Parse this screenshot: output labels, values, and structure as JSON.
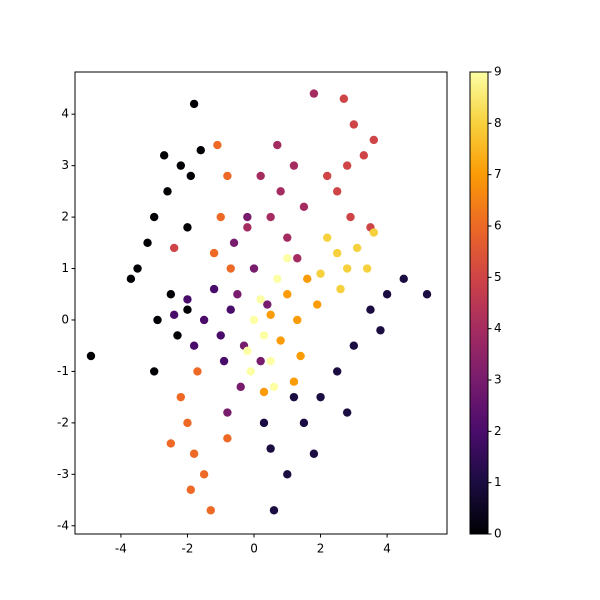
{
  "chart_data": {
    "type": "scatter",
    "colormap": "inferno",
    "x": [
      -2.2,
      -1.8,
      -2.6,
      -3.0,
      -2.0,
      -3.5,
      -2.5,
      -2.9,
      -1.9,
      -3.2,
      -2.3,
      -4.9,
      -3.7,
      -1.6,
      -2.7,
      -3.0,
      -2.0,
      0.5,
      1.0,
      1.5,
      2.0,
      2.5,
      3.0,
      3.5,
      4.0,
      4.5,
      5.2,
      0.3,
      1.2,
      2.8,
      0.6,
      3.8,
      1.8,
      -1.5,
      -1.0,
      -2.0,
      -1.2,
      -0.7,
      -1.8,
      -0.9,
      -2.4,
      -0.5,
      -0.3,
      0.0,
      -0.6,
      0.2,
      -0.4,
      0.4,
      -0.8,
      -0.2,
      0.8,
      1.2,
      0.5,
      1.5,
      0.2,
      1.0,
      0.7,
      1.8,
      1.3,
      -0.2,
      2.8,
      3.0,
      2.5,
      3.3,
      2.7,
      2.2,
      3.6,
      2.9,
      -2.4,
      3.5,
      -1.0,
      -0.8,
      -1.2,
      -0.7,
      -1.1,
      -2.0,
      -1.8,
      -2.2,
      -1.5,
      -1.3,
      -2.5,
      -0.8,
      -1.7,
      -1.9,
      1.3,
      1.0,
      1.6,
      0.8,
      1.4,
      0.5,
      1.9,
      1.2,
      0.3,
      2.5,
      2.8,
      2.2,
      3.1,
      2.0,
      3.4,
      2.6,
      3.6,
      0.3,
      0.0,
      0.5,
      -0.1,
      0.7,
      0.2,
      1.0,
      -0.2,
      0.6
    ],
    "y": [
      3.0,
      4.2,
      2.5,
      2.0,
      1.8,
      1.0,
      0.5,
      0.0,
      2.8,
      1.5,
      -0.3,
      -0.7,
      0.8,
      3.3,
      3.2,
      -1.0,
      0.2,
      -2.5,
      -3.0,
      -2.0,
      -1.5,
      -1.0,
      -0.5,
      0.2,
      0.5,
      0.8,
      0.5,
      -2.0,
      -1.5,
      -1.8,
      -3.7,
      -0.2,
      -2.6,
      0.0,
      -0.3,
      0.4,
      0.6,
      0.2,
      -0.5,
      -0.8,
      0.1,
      0.5,
      -0.5,
      1.0,
      1.5,
      -0.8,
      -1.3,
      0.3,
      -1.8,
      2.0,
      2.5,
      3.0,
      2.0,
      2.2,
      2.8,
      1.6,
      3.4,
      4.4,
      1.2,
      1.8,
      3.0,
      3.8,
      2.5,
      3.2,
      4.3,
      2.8,
      3.5,
      2.0,
      1.4,
      1.8,
      2.0,
      2.8,
      1.3,
      1.0,
      3.4,
      -2.0,
      -2.6,
      -1.5,
      -3.0,
      -3.7,
      -2.4,
      -2.3,
      -1.0,
      -3.3,
      0.0,
      0.5,
      0.8,
      -0.4,
      -0.7,
      0.1,
      0.3,
      -1.2,
      -1.4,
      1.3,
      1.0,
      1.6,
      1.4,
      0.9,
      1.0,
      0.6,
      1.7,
      -0.3,
      0.0,
      -0.8,
      -1.0,
      0.8,
      0.4,
      1.2,
      -0.6,
      -1.3
    ],
    "c": [
      0,
      0,
      0,
      0,
      0,
      0,
      0,
      0,
      0,
      0,
      0,
      0,
      0,
      0,
      0,
      0,
      0,
      1,
      1,
      1,
      1,
      1,
      1,
      1,
      1,
      1,
      1,
      1,
      1,
      1,
      1,
      1,
      1,
      2,
      2,
      2,
      2,
      2,
      2,
      2,
      2,
      3,
      3,
      3,
      3,
      3,
      3,
      3,
      3,
      3,
      4,
      4,
      4,
      4,
      4,
      4,
      4,
      4,
      4,
      4,
      5,
      5,
      5,
      5,
      5,
      5,
      5,
      5,
      5,
      5,
      6,
      6,
      6,
      6,
      6,
      6,
      6,
      6,
      6,
      6,
      6,
      6,
      6,
      6,
      7,
      7,
      7,
      7,
      7,
      7,
      7,
      7,
      7,
      8,
      8,
      8,
      8,
      8,
      8,
      8,
      8,
      9,
      9,
      9,
      9,
      9,
      9,
      9,
      9,
      9
    ],
    "xlim": [
      -5.38,
      5.8
    ],
    "ylim": [
      -4.16,
      4.82
    ],
    "xticks": [
      -4,
      -2,
      0,
      2,
      4
    ],
    "yticks": [
      -4,
      -3,
      -2,
      -1,
      0,
      1,
      2,
      3,
      4
    ],
    "clim": [
      0,
      9
    ],
    "cticks": [
      0,
      1,
      2,
      3,
      4,
      5,
      6,
      7,
      8,
      9
    ]
  }
}
